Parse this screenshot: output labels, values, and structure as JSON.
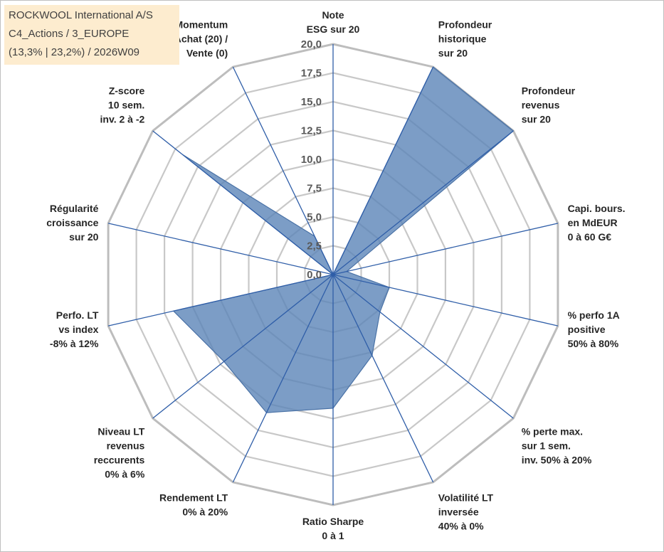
{
  "chart_data": {
    "type": "radar",
    "title_lines": [
      "ROCKWOOL International A/S",
      "C4_Actions / 3_EUROPE",
      "(13,3% | 23,2%) / 2026W09"
    ],
    "rmin": 0,
    "rmax": 20,
    "ticks": [
      "0,0",
      "2,5",
      "5,0",
      "7,5",
      "10,0",
      "12,5",
      "15,0",
      "17,5",
      "20,0"
    ],
    "axes": [
      {
        "label": [
          "Note",
          "ESG sur 20"
        ],
        "value": 0
      },
      {
        "label": [
          "Profondeur",
          "historique",
          "sur 20"
        ],
        "value": 20
      },
      {
        "label": [
          "Profondeur",
          "revenus",
          "sur 20"
        ],
        "value": 20
      },
      {
        "label": [
          "Capi. bours.",
          "en MdEUR",
          "0 à 60 G€"
        ],
        "value": 1.2
      },
      {
        "label": [
          "% perfo 1A",
          "positive",
          "50% à 80%"
        ],
        "value": 5
      },
      {
        "label": [
          "% perte max.",
          "sur 1 sem.",
          "inv. 50% à 20%"
        ],
        "value": 5.2
      },
      {
        "label": [
          "Volatilité LT",
          "inversée",
          "40% à 0%"
        ],
        "value": 7.8
      },
      {
        "label": [
          "Ratio Sharpe",
          "0 à 1"
        ],
        "value": 11.6
      },
      {
        "label": [
          "Rendement LT",
          "0% à 20%"
        ],
        "value": 13.3
      },
      {
        "label": [
          "Niveau LT",
          "revenus",
          "reccurents",
          "0% à 6%"
        ],
        "value": 12.1
      },
      {
        "label": [
          "Perfo. LT",
          "vs index",
          "-8% à 12%"
        ],
        "value": 14.2
      },
      {
        "label": [
          "Régularité",
          "croissance",
          "sur 20"
        ],
        "value": 0
      },
      {
        "label": [
          "Z-score",
          "10 sem.",
          "inv. 2 à -2"
        ],
        "value": 16.7
      },
      {
        "label": [
          "Momentum",
          "Achat (20) /",
          "Vente (0)"
        ],
        "value": 3.7
      }
    ],
    "colors": {
      "fill": "#5b85b8",
      "stroke": "#4a72a6",
      "spoke": "#2f5ea8",
      "grid": "#c8c8c8",
      "grid_outer": "#bdbdbd"
    }
  }
}
